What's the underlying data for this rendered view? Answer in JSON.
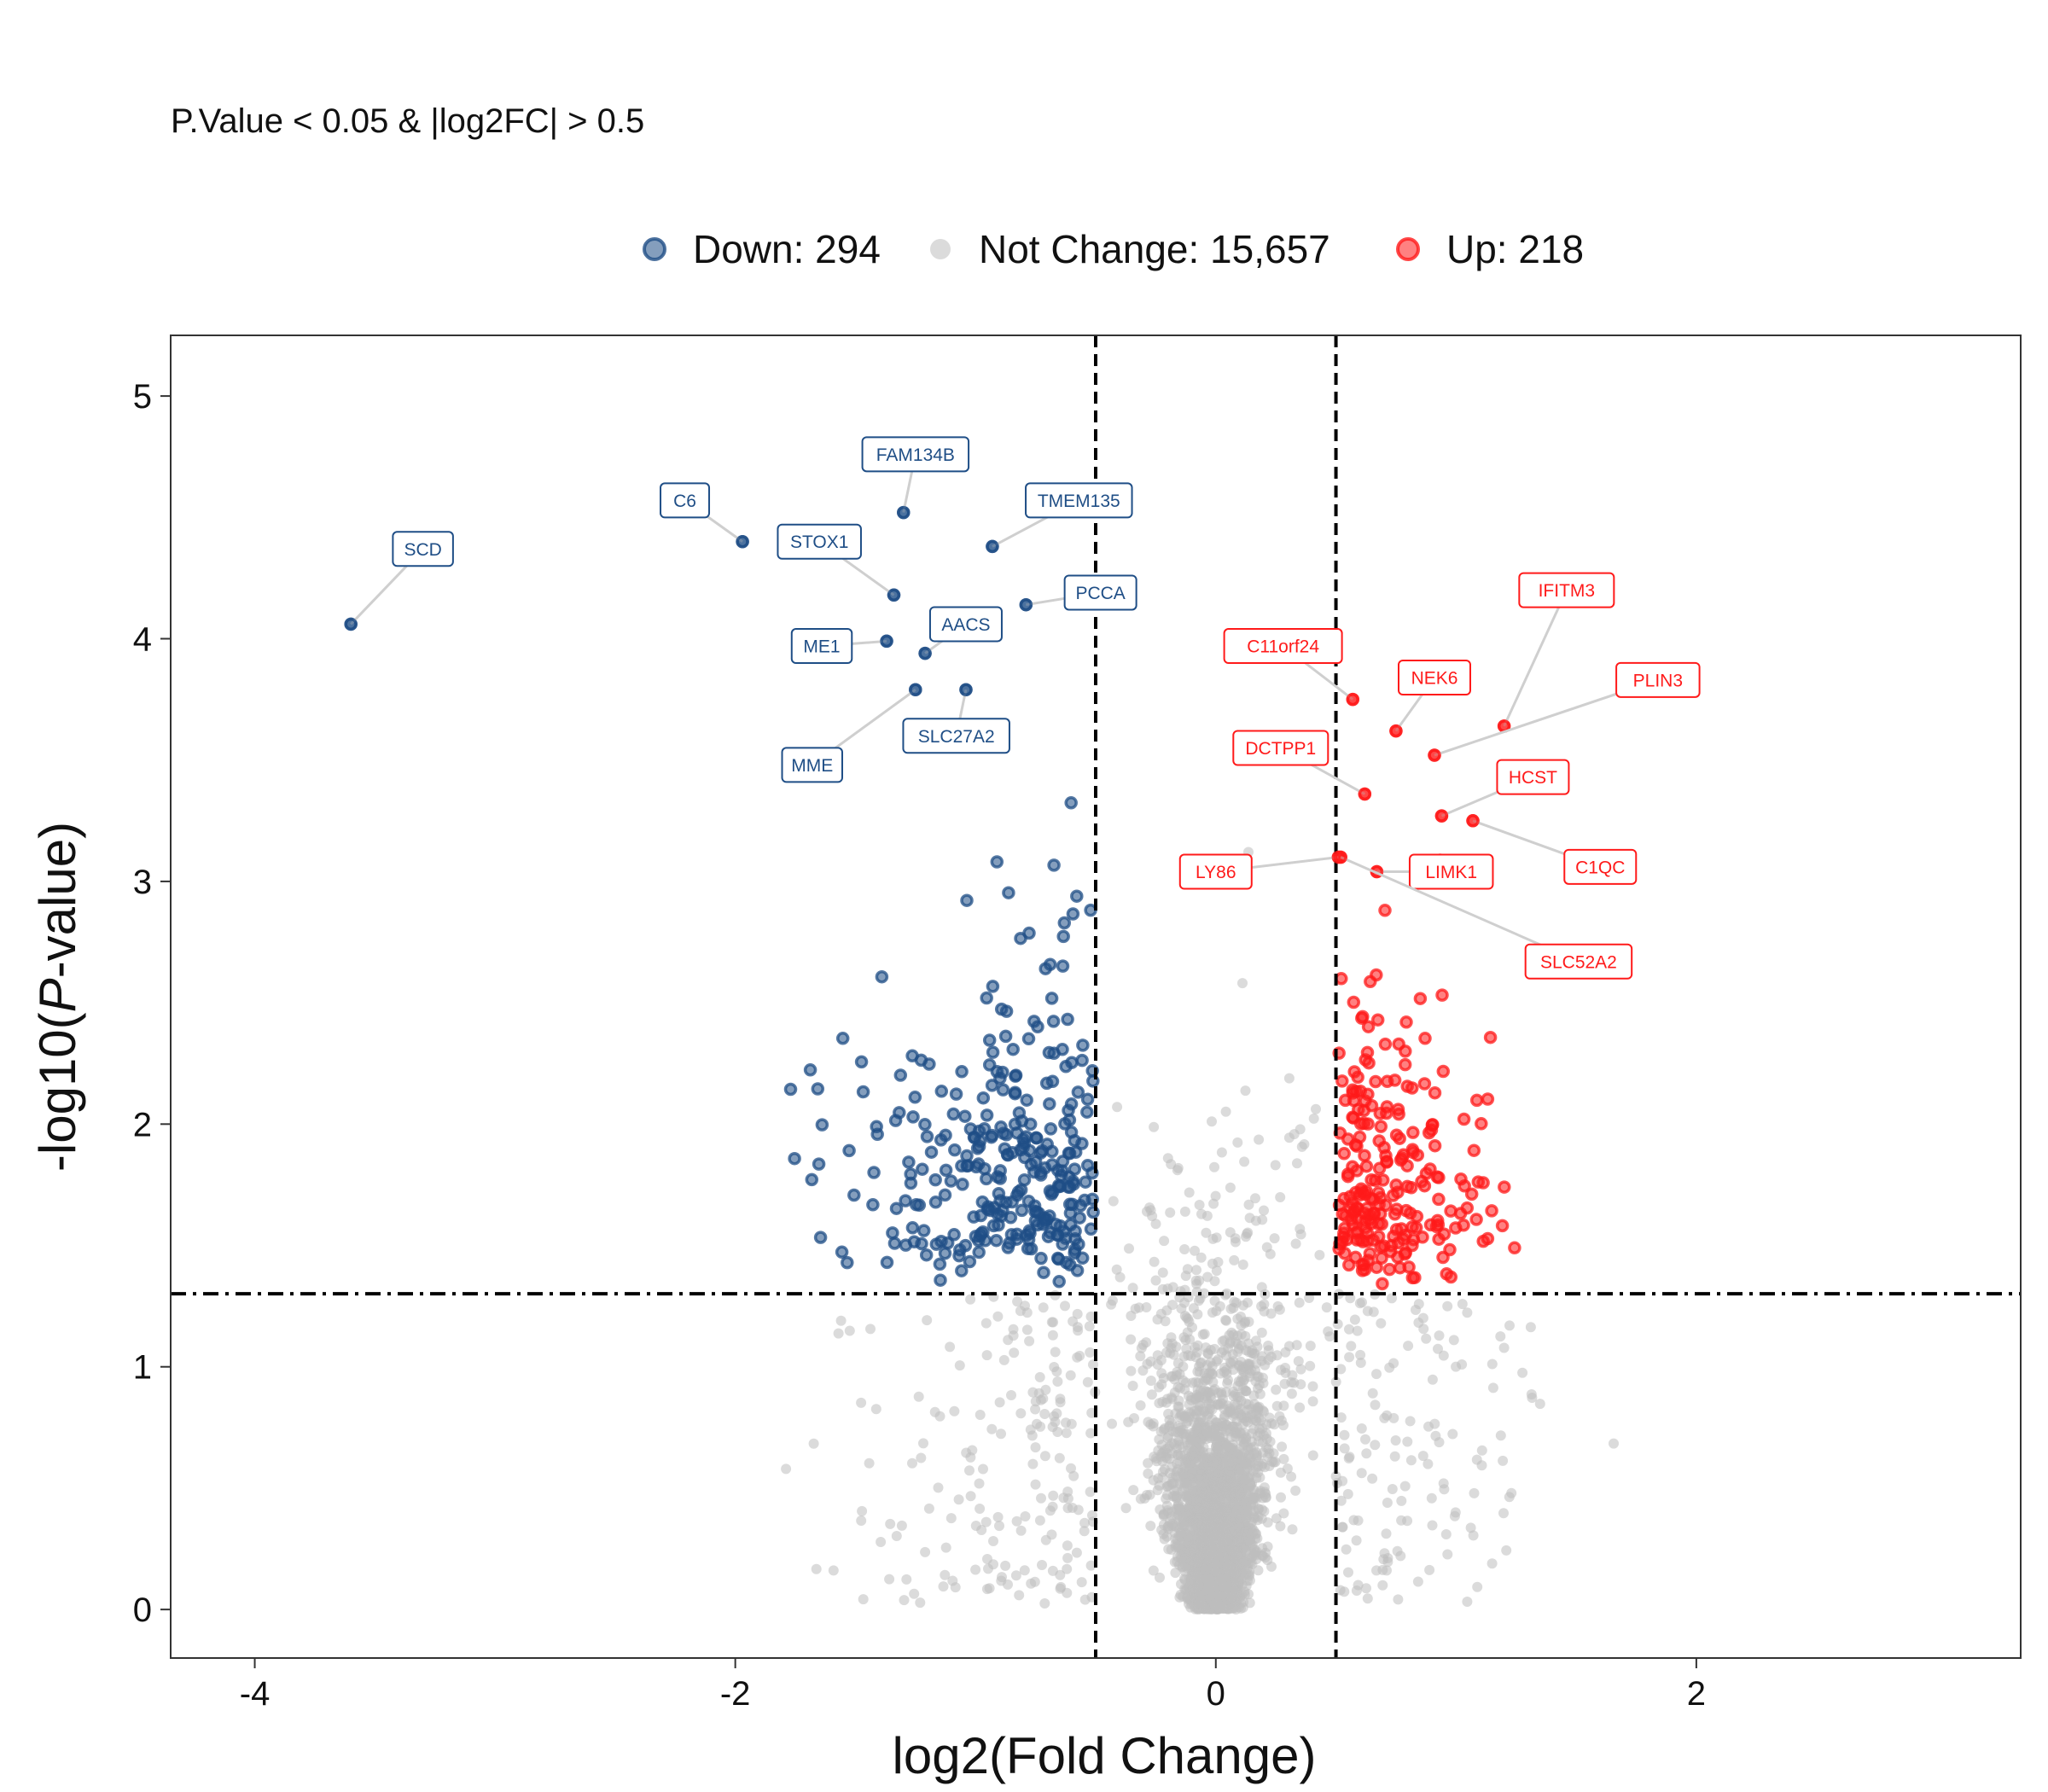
{
  "chart_data": {
    "type": "scatter",
    "subtitle": "P.Value < 0.05 & |log2FC| > 0.5",
    "xlabel": "log2(Fold Change)",
    "ylabel_prefix": "-log10(",
    "ylabel_italic": "P",
    "ylabel_suffix": "-value)",
    "xlim": [
      -4.35,
      3.35
    ],
    "ylim": [
      -0.2,
      5.25
    ],
    "x_ticks": [
      "-4",
      "-2",
      "0",
      "2"
    ],
    "y_ticks": [
      "0",
      "1",
      "2",
      "3",
      "4",
      "5"
    ],
    "thresholds": {
      "log2fc": 0.5,
      "neg_log10_p": 1.301
    },
    "legend_position": "top",
    "series": [
      {
        "name": "Down: 294",
        "key": "down",
        "color": "#1f4e86"
      },
      {
        "name": "Not Change: 15,657",
        "key": "none",
        "color": "#bdbdbd"
      },
      {
        "name": "Up: 218",
        "key": "up",
        "color": "#ff1a1a"
      }
    ],
    "labeled_points": [
      {
        "gene": "SCD",
        "x": -3.6,
        "y": 4.06,
        "lx": -3.3,
        "ly": 4.37,
        "group": "down"
      },
      {
        "gene": "C6",
        "x": -1.97,
        "y": 4.4,
        "lx": -2.21,
        "ly": 4.57,
        "group": "down"
      },
      {
        "gene": "FAM134B",
        "x": -1.3,
        "y": 4.52,
        "lx": -1.25,
        "ly": 4.76,
        "group": "down"
      },
      {
        "gene": "STOX1",
        "x": -1.34,
        "y": 4.18,
        "lx": -1.65,
        "ly": 4.4,
        "group": "down"
      },
      {
        "gene": "TMEM135",
        "x": -0.93,
        "y": 4.38,
        "lx": -0.57,
        "ly": 4.57,
        "group": "down"
      },
      {
        "gene": "PCCA",
        "x": -0.79,
        "y": 4.14,
        "lx": -0.48,
        "ly": 4.19,
        "group": "down"
      },
      {
        "gene": "AACS",
        "x": -1.21,
        "y": 3.94,
        "lx": -1.04,
        "ly": 4.06,
        "group": "down"
      },
      {
        "gene": "ME1",
        "x": -1.37,
        "y": 3.99,
        "lx": -1.64,
        "ly": 3.97,
        "group": "down"
      },
      {
        "gene": "SLC27A2",
        "x": -1.04,
        "y": 3.79,
        "lx": -1.08,
        "ly": 3.6,
        "group": "down"
      },
      {
        "gene": "MME",
        "x": -1.25,
        "y": 3.79,
        "lx": -1.68,
        "ly": 3.48,
        "group": "down"
      },
      {
        "gene": "C11orf24",
        "x": 0.57,
        "y": 3.75,
        "lx": 0.28,
        "ly": 3.97,
        "group": "up"
      },
      {
        "gene": "NEK6",
        "x": 0.75,
        "y": 3.62,
        "lx": 0.91,
        "ly": 3.84,
        "group": "up"
      },
      {
        "gene": "IFITM3",
        "x": 1.2,
        "y": 3.64,
        "lx": 1.46,
        "ly": 4.2,
        "group": "up"
      },
      {
        "gene": "PLIN3",
        "x": 0.91,
        "y": 3.52,
        "lx": 1.84,
        "ly": 3.83,
        "group": "up"
      },
      {
        "gene": "DCTPP1",
        "x": 0.62,
        "y": 3.36,
        "lx": 0.27,
        "ly": 3.55,
        "group": "up"
      },
      {
        "gene": "HCST",
        "x": 0.94,
        "y": 3.27,
        "lx": 1.32,
        "ly": 3.43,
        "group": "up"
      },
      {
        "gene": "C1QC",
        "x": 1.07,
        "y": 3.25,
        "lx": 1.6,
        "ly": 3.06,
        "group": "up"
      },
      {
        "gene": "LY86",
        "x": 0.51,
        "y": 3.1,
        "lx": 0.0,
        "ly": 3.04,
        "group": "up"
      },
      {
        "gene": "LIMK1",
        "x": 0.67,
        "y": 3.04,
        "lx": 0.98,
        "ly": 3.04,
        "group": "up"
      },
      {
        "gene": "SLC52A2",
        "x": 0.52,
        "y": 3.1,
        "lx": 1.51,
        "ly": 2.67,
        "group": "up"
      }
    ],
    "point_counts": {
      "down": 294,
      "not_change": 15657,
      "up": 218
    }
  }
}
